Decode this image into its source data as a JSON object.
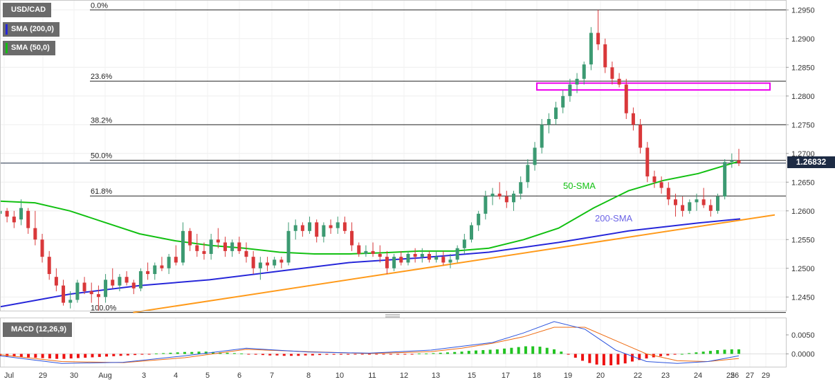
{
  "symbol": "USD/CAD",
  "legend": [
    {
      "label": "SMA (200,0)",
      "color": "#2626d9"
    },
    {
      "label": "SMA (50,0)",
      "color": "#11c011"
    }
  ],
  "current_price": "1.26832",
  "macd_label": "MACD (12,26,9)",
  "colors": {
    "bull": "#3c9a72",
    "bear": "#d9383a",
    "sma50": "#11c011",
    "sma200": "#2626d9",
    "trendline": "#ff9a1a",
    "resistance_box": "#ee00ee",
    "macd_line": "#2a52dd",
    "signal_line": "#ee6a10",
    "hist_pos": "#22c422",
    "hist_neg": "#ee1111"
  },
  "annotations": {
    "sma50": "50-SMA",
    "sma200": "200-SMA"
  },
  "chart_data": {
    "type": "candlestick",
    "price_axis": {
      "min": 1.2425,
      "max": 1.296,
      "ticks": [
        "1.2450",
        "1.2500",
        "1.2550",
        "1.2600",
        "1.2650",
        "1.2700",
        "1.2750",
        "1.2800",
        "1.2850",
        "1.2900",
        "1.2950"
      ]
    },
    "x_ticks": [
      "Jul",
      "29",
      "30",
      "Aug",
      "3",
      "4",
      "5",
      "6",
      "7",
      "8",
      "10",
      "11",
      "12",
      "13",
      "15",
      "17",
      "18",
      "19",
      "20",
      "22",
      "23",
      "24",
      "25",
      "26",
      "27",
      "29"
    ],
    "fibonacci": [
      {
        "label": "0.0%",
        "price": 1.295
      },
      {
        "label": "23.6%",
        "price": 1.2826
      },
      {
        "label": "38.2%",
        "price": 1.275
      },
      {
        "label": "50.0%",
        "price": 1.2688
      },
      {
        "label": "61.8%",
        "price": 1.2626
      },
      {
        "label": "100.0%",
        "price": 1.2423
      }
    ],
    "resistance_zone": [
      1.2813,
      1.282
    ],
    "candles": [
      [
        1.2595,
        1.261,
        1.2585,
        1.26
      ],
      [
        1.26,
        1.2605,
        1.258,
        1.259
      ],
      [
        1.259,
        1.26,
        1.257,
        1.258
      ],
      [
        1.2585,
        1.262,
        1.2575,
        1.2605
      ],
      [
        1.26,
        1.2605,
        1.256,
        1.257
      ],
      [
        1.257,
        1.26,
        1.254,
        1.255
      ],
      [
        1.255,
        1.256,
        1.251,
        1.252
      ],
      [
        1.252,
        1.253,
        1.248,
        1.249
      ],
      [
        1.2485,
        1.25,
        1.246,
        1.247
      ],
      [
        1.247,
        1.248,
        1.2435,
        1.244
      ],
      [
        1.244,
        1.246,
        1.243,
        1.2445
      ],
      [
        1.2445,
        1.248,
        1.244,
        1.2475
      ],
      [
        1.2475,
        1.2485,
        1.2455,
        1.246
      ],
      [
        1.246,
        1.2475,
        1.244,
        1.2455
      ],
      [
        1.2455,
        1.247,
        1.2425,
        1.245
      ],
      [
        1.245,
        1.249,
        1.244,
        1.248
      ],
      [
        1.248,
        1.25,
        1.2465,
        1.247
      ],
      [
        1.247,
        1.249,
        1.246,
        1.2485
      ],
      [
        1.2485,
        1.2495,
        1.247,
        1.2475
      ],
      [
        1.2475,
        1.248,
        1.2455,
        1.2465
      ],
      [
        1.2465,
        1.25,
        1.246,
        1.2495
      ],
      [
        1.2495,
        1.251,
        1.248,
        1.249
      ],
      [
        1.249,
        1.251,
        1.248,
        1.2505
      ],
      [
        1.2505,
        1.252,
        1.2495,
        1.25
      ],
      [
        1.25,
        1.2525,
        1.249,
        1.252
      ],
      [
        1.252,
        1.254,
        1.2505,
        1.251
      ],
      [
        1.251,
        1.258,
        1.2505,
        1.2565
      ],
      [
        1.2565,
        1.257,
        1.253,
        1.254
      ],
      [
        1.254,
        1.256,
        1.252,
        1.253
      ],
      [
        1.253,
        1.2545,
        1.2515,
        1.2525
      ],
      [
        1.2525,
        1.256,
        1.2515,
        1.255
      ],
      [
        1.255,
        1.257,
        1.2535,
        1.2545
      ],
      [
        1.2545,
        1.2555,
        1.252,
        1.253
      ],
      [
        1.253,
        1.255,
        1.252,
        1.2545
      ],
      [
        1.2545,
        1.2555,
        1.2525,
        1.253
      ],
      [
        1.253,
        1.2545,
        1.251,
        1.252
      ],
      [
        1.252,
        1.253,
        1.249,
        1.25
      ],
      [
        1.25,
        1.252,
        1.248,
        1.251
      ],
      [
        1.251,
        1.252,
        1.2495,
        1.2505
      ],
      [
        1.2505,
        1.252,
        1.25,
        1.2515
      ],
      [
        1.2515,
        1.252,
        1.25,
        1.251
      ],
      [
        1.251,
        1.258,
        1.2505,
        1.2565
      ],
      [
        1.2565,
        1.2585,
        1.255,
        1.2575
      ],
      [
        1.2575,
        1.258,
        1.2555,
        1.2565
      ],
      [
        1.2565,
        1.259,
        1.256,
        1.258
      ],
      [
        1.258,
        1.2585,
        1.2545,
        1.2555
      ],
      [
        1.2555,
        1.258,
        1.2545,
        1.2575
      ],
      [
        1.2575,
        1.2585,
        1.256,
        1.257
      ],
      [
        1.257,
        1.259,
        1.256,
        1.258
      ],
      [
        1.258,
        1.259,
        1.256,
        1.2565
      ],
      [
        1.2565,
        1.258,
        1.253,
        1.254
      ],
      [
        1.254,
        1.2545,
        1.252,
        1.2525
      ],
      [
        1.2525,
        1.254,
        1.252,
        1.253
      ],
      [
        1.253,
        1.2545,
        1.252,
        1.2525
      ],
      [
        1.2525,
        1.254,
        1.251,
        1.252
      ],
      [
        1.252,
        1.253,
        1.249,
        1.25
      ],
      [
        1.25,
        1.2525,
        1.2495,
        1.252
      ],
      [
        1.252,
        1.253,
        1.2505,
        1.251
      ],
      [
        1.251,
        1.253,
        1.2505,
        1.2525
      ],
      [
        1.2525,
        1.2535,
        1.251,
        1.252
      ],
      [
        1.252,
        1.2535,
        1.251,
        1.2525
      ],
      [
        1.2525,
        1.253,
        1.251,
        1.2515
      ],
      [
        1.2515,
        1.253,
        1.251,
        1.252
      ],
      [
        1.252,
        1.253,
        1.2505,
        1.251
      ],
      [
        1.251,
        1.2525,
        1.25,
        1.2515
      ],
      [
        1.2515,
        1.254,
        1.251,
        1.2535
      ],
      [
        1.2535,
        1.256,
        1.2525,
        1.255
      ],
      [
        1.255,
        1.258,
        1.2545,
        1.2575
      ],
      [
        1.2575,
        1.26,
        1.2565,
        1.2595
      ],
      [
        1.2595,
        1.2635,
        1.2585,
        1.2625
      ],
      [
        1.2625,
        1.264,
        1.261,
        1.263
      ],
      [
        1.263,
        1.265,
        1.262,
        1.2625
      ],
      [
        1.2625,
        1.2635,
        1.2605,
        1.2615
      ],
      [
        1.2615,
        1.2635,
        1.26,
        1.263
      ],
      [
        1.263,
        1.266,
        1.262,
        1.265
      ],
      [
        1.265,
        1.269,
        1.264,
        1.268
      ],
      [
        1.268,
        1.272,
        1.267,
        1.271
      ],
      [
        1.271,
        1.276,
        1.27,
        1.275
      ],
      [
        1.275,
        1.277,
        1.2735,
        1.276
      ],
      [
        1.276,
        1.279,
        1.275,
        1.278
      ],
      [
        1.278,
        1.281,
        1.277,
        1.28
      ],
      [
        1.28,
        1.283,
        1.279,
        1.282
      ],
      [
        1.282,
        1.284,
        1.2805,
        1.283
      ],
      [
        1.283,
        1.286,
        1.282,
        1.2855
      ],
      [
        1.2855,
        1.292,
        1.2845,
        1.291
      ],
      [
        1.291,
        1.295,
        1.288,
        1.289
      ],
      [
        1.289,
        1.29,
        1.284,
        1.285
      ],
      [
        1.285,
        1.286,
        1.282,
        1.283
      ],
      [
        1.283,
        1.284,
        1.2815,
        1.282
      ],
      [
        1.282,
        1.283,
        1.276,
        1.277
      ],
      [
        1.277,
        1.278,
        1.274,
        1.275
      ],
      [
        1.275,
        1.276,
        1.27,
        1.271
      ],
      [
        1.271,
        1.272,
        1.265,
        1.266
      ],
      [
        1.266,
        1.267,
        1.264,
        1.265
      ],
      [
        1.265,
        1.266,
        1.263,
        1.264
      ],
      [
        1.264,
        1.265,
        1.261,
        1.262
      ],
      [
        1.262,
        1.263,
        1.259,
        1.261
      ],
      [
        1.261,
        1.2625,
        1.259,
        1.26
      ],
      [
        1.26,
        1.262,
        1.2595,
        1.2615
      ],
      [
        1.2615,
        1.263,
        1.26,
        1.262
      ],
      [
        1.262,
        1.264,
        1.2605,
        1.261
      ],
      [
        1.261,
        1.262,
        1.259,
        1.26
      ],
      [
        1.26,
        1.263,
        1.2595,
        1.2625
      ],
      [
        1.2625,
        1.269,
        1.262,
        1.2685
      ],
      [
        1.2685,
        1.27,
        1.2675,
        1.2688
      ],
      [
        1.2688,
        1.2708,
        1.2678,
        1.2683
      ]
    ],
    "sma50": [
      [
        0,
        1.2617
      ],
      [
        5,
        1.2614
      ],
      [
        10,
        1.26
      ],
      [
        15,
        1.258
      ],
      [
        20,
        1.256
      ],
      [
        25,
        1.2548
      ],
      [
        30,
        1.254
      ],
      [
        35,
        1.2535
      ],
      [
        40,
        1.2528
      ],
      [
        45,
        1.2525
      ],
      [
        50,
        1.2525
      ],
      [
        55,
        1.2527
      ],
      [
        60,
        1.253
      ],
      [
        65,
        1.253
      ],
      [
        70,
        1.2535
      ],
      [
        75,
        1.255
      ],
      [
        80,
        1.257
      ],
      [
        85,
        1.2605
      ],
      [
        90,
        1.2635
      ],
      [
        95,
        1.2653
      ],
      [
        100,
        1.2665
      ],
      [
        106,
        1.2687
      ]
    ],
    "sma200": [
      [
        0,
        1.2433
      ],
      [
        10,
        1.2455
      ],
      [
        20,
        1.247
      ],
      [
        30,
        1.248
      ],
      [
        40,
        1.2495
      ],
      [
        50,
        1.251
      ],
      [
        60,
        1.2518
      ],
      [
        70,
        1.2528
      ],
      [
        80,
        1.2545
      ],
      [
        90,
        1.2565
      ],
      [
        100,
        1.2579
      ],
      [
        106,
        1.2586
      ]
    ],
    "trendline": [
      [
        25,
        1.2423
      ],
      [
        108,
        1.2593
      ]
    ],
    "macd": {
      "label": "MACD (12,26,9)",
      "range": [
        -0.003,
        0.009
      ],
      "ticks": [
        "0.0050",
        "0.0000"
      ],
      "histogram": [
        -0.0005,
        -0.0006,
        -0.0007,
        -0.0008,
        -0.0009,
        -0.001,
        -0.0011,
        -0.0012,
        -0.0013,
        -0.0013,
        -0.0012,
        -0.0011,
        -0.001,
        -0.0009,
        -0.0008,
        -0.0007,
        -0.0006,
        -0.0005,
        -0.0004,
        -0.0003,
        -0.0002,
        -0.0001,
        0.0001,
        0.0002,
        0.0003,
        0.0004,
        0.0005,
        0.0005,
        0.0006,
        0.0006,
        0.0005,
        0.0004,
        0.0003,
        0.0002,
        0.0001,
        -0.0001,
        -0.0002,
        -0.0003,
        -0.0004,
        -0.0004,
        -0.0005,
        -0.0005,
        -0.0005,
        -0.0004,
        -0.0004,
        -0.0003,
        -0.0002,
        -0.0002,
        -0.0002,
        -0.0002,
        -0.0001,
        -0.0001,
        -0.0001,
        -0.0001,
        -0.0001,
        -0.0001,
        -0.0001,
        -0.0001,
        -0.0001,
        0.0001,
        0.0001,
        0.0002,
        0.0003,
        0.0004,
        0.0005,
        0.0006,
        0.0008,
        0.0009,
        0.001,
        0.0011,
        0.0012,
        0.0014,
        0.0016,
        0.0018,
        0.002,
        0.002,
        0.0019,
        0.0016,
        0.0012,
        0.0006,
        -0.0002,
        -0.001,
        -0.0018,
        -0.0024,
        -0.0028,
        -0.003,
        -0.003,
        -0.0028,
        -0.0025,
        -0.002,
        -0.0016,
        -0.0012,
        -0.0009,
        -0.0006,
        -0.0004,
        -0.0002,
        0.0,
        0.0002,
        0.0004,
        0.0006,
        0.0008,
        0.001,
        0.0011,
        0.0012,
        0.0012
      ],
      "macd_line": [
        [
          0,
          -0.0005
        ],
        [
          10,
          -0.0025
        ],
        [
          20,
          -0.0022
        ],
        [
          30,
          -0.0005
        ],
        [
          40,
          0.0015
        ],
        [
          50,
          0.0005
        ],
        [
          60,
          0.0002
        ],
        [
          70,
          0.001
        ],
        [
          75,
          0.002
        ],
        [
          80,
          0.003
        ],
        [
          85,
          0.0055
        ],
        [
          90,
          0.0085
        ],
        [
          95,
          0.0065
        ],
        [
          100,
          0.001
        ],
        [
          105,
          -0.002
        ],
        [
          110,
          -0.0025
        ],
        [
          115,
          -0.002
        ],
        [
          120,
          -0.0005
        ]
      ],
      "signal_line": [
        [
          0,
          -0.0002
        ],
        [
          10,
          -0.002
        ],
        [
          20,
          -0.0023
        ],
        [
          30,
          -0.001
        ],
        [
          40,
          0.0012
        ],
        [
          50,
          0.0006
        ],
        [
          60,
          0.0001
        ],
        [
          70,
          0.0006
        ],
        [
          75,
          0.0015
        ],
        [
          80,
          0.0028
        ],
        [
          85,
          0.0045
        ],
        [
          90,
          0.007
        ],
        [
          95,
          0.007
        ],
        [
          100,
          0.0035
        ],
        [
          105,
          0.0
        ],
        [
          110,
          -0.0018
        ],
        [
          115,
          -0.002
        ],
        [
          120,
          -0.0012
        ]
      ]
    }
  }
}
